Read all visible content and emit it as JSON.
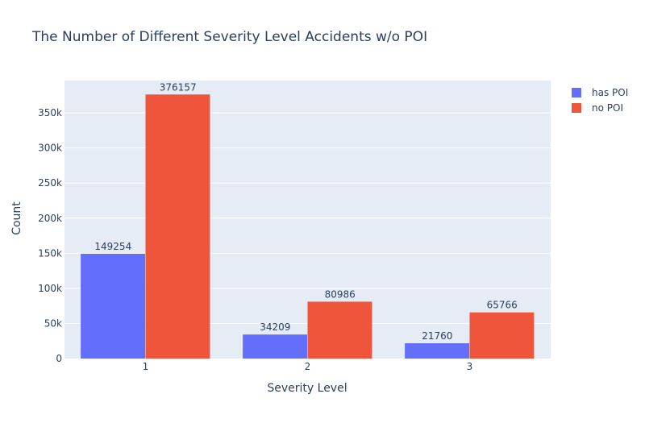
{
  "chart_data": {
    "type": "bar",
    "title": "The Number of Different Severity Level Accidents w/o POI",
    "xlabel": "Severity Level",
    "ylabel": "Count",
    "categories": [
      "1",
      "2",
      "3"
    ],
    "ylim": [
      0,
      396000
    ],
    "yticks": [
      0,
      50000,
      100000,
      150000,
      200000,
      250000,
      300000,
      350000
    ],
    "ytick_labels": [
      "0",
      "50k",
      "100k",
      "150k",
      "200k",
      "250k",
      "300k",
      "350k"
    ],
    "grid": true,
    "legend_position": "top-right",
    "series": [
      {
        "name": "has POI",
        "values": [
          149254,
          34209,
          21760
        ],
        "color": "#636efa"
      },
      {
        "name": "no POI",
        "values": [
          376157,
          80986,
          65766
        ],
        "color": "#ef553b"
      }
    ]
  },
  "colors": {
    "plot_background": "#e5ecf6",
    "grid": "#ffffff",
    "text": "#2a3f5f"
  }
}
